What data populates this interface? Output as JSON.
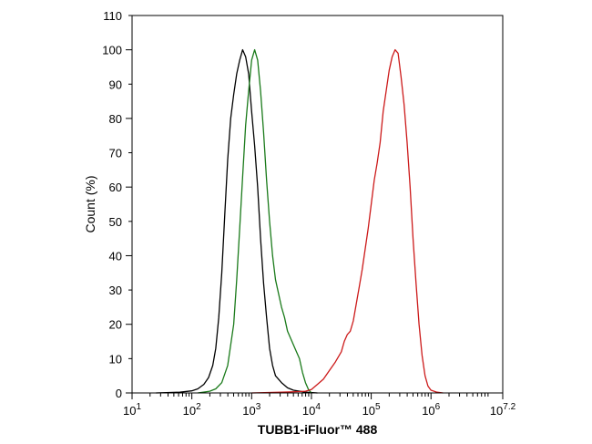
{
  "chart_data": {
    "type": "line",
    "xlabel": "TUBB1-iFluor™ 488",
    "ylabel": "Count  (%)",
    "x_scale": "log10",
    "xlim": [
      1,
      7.2
    ],
    "ylim": [
      0,
      110
    ],
    "x_ticks": [
      {
        "value": 1,
        "base": "10",
        "exp": "1"
      },
      {
        "value": 2,
        "base": "10",
        "exp": "2"
      },
      {
        "value": 3,
        "base": "10",
        "exp": "3"
      },
      {
        "value": 4,
        "base": "10",
        "exp": "4"
      },
      {
        "value": 5,
        "base": "10",
        "exp": "5"
      },
      {
        "value": 6,
        "base": "10",
        "exp": "6"
      },
      {
        "value": 7.2,
        "base": "10",
        "exp": "7.2"
      }
    ],
    "y_ticks_major": [
      0,
      20,
      40,
      60,
      80,
      100
    ],
    "y_ticks_minor": [
      10,
      30,
      50,
      70,
      90,
      110
    ],
    "y_tick_labels": [
      "0",
      "20",
      "40",
      "60",
      "80",
      "100"
    ],
    "grid": false,
    "legend": "none",
    "series": [
      {
        "color": "#000000",
        "points": [
          [
            1.4,
            0
          ],
          [
            1.8,
            0.2
          ],
          [
            2.0,
            0.6
          ],
          [
            2.1,
            1.2
          ],
          [
            2.2,
            2.5
          ],
          [
            2.28,
            4.5
          ],
          [
            2.35,
            8
          ],
          [
            2.4,
            13
          ],
          [
            2.45,
            22
          ],
          [
            2.5,
            35
          ],
          [
            2.55,
            52
          ],
          [
            2.6,
            68
          ],
          [
            2.65,
            80
          ],
          [
            2.7,
            87
          ],
          [
            2.75,
            93
          ],
          [
            2.8,
            97
          ],
          [
            2.85,
            100
          ],
          [
            2.9,
            98
          ],
          [
            2.95,
            93
          ],
          [
            3.0,
            82
          ],
          [
            3.05,
            72
          ],
          [
            3.1,
            60
          ],
          [
            3.15,
            45
          ],
          [
            3.2,
            32
          ],
          [
            3.25,
            22
          ],
          [
            3.3,
            13
          ],
          [
            3.35,
            8
          ],
          [
            3.4,
            5
          ],
          [
            3.5,
            3
          ],
          [
            3.6,
            1.5
          ],
          [
            3.7,
            0.8
          ],
          [
            3.9,
            0.2
          ],
          [
            4.1,
            0
          ]
        ]
      },
      {
        "color": "#1a7a1a",
        "points": [
          [
            2.1,
            0
          ],
          [
            2.3,
            0.5
          ],
          [
            2.4,
            1.2
          ],
          [
            2.5,
            3
          ],
          [
            2.6,
            8
          ],
          [
            2.7,
            20
          ],
          [
            2.75,
            33
          ],
          [
            2.8,
            48
          ],
          [
            2.85,
            63
          ],
          [
            2.9,
            78
          ],
          [
            2.95,
            88
          ],
          [
            3.0,
            97
          ],
          [
            3.05,
            100
          ],
          [
            3.1,
            97
          ],
          [
            3.15,
            88
          ],
          [
            3.2,
            76
          ],
          [
            3.25,
            62
          ],
          [
            3.3,
            50
          ],
          [
            3.35,
            40
          ],
          [
            3.4,
            33
          ],
          [
            3.45,
            29
          ],
          [
            3.5,
            25
          ],
          [
            3.55,
            22
          ],
          [
            3.6,
            18
          ],
          [
            3.7,
            14
          ],
          [
            3.8,
            10
          ],
          [
            3.85,
            6
          ],
          [
            3.9,
            3
          ],
          [
            3.95,
            1
          ],
          [
            4.0,
            0
          ]
        ]
      },
      {
        "color": "#cc1a1a",
        "points": [
          [
            3.0,
            0
          ],
          [
            3.5,
            0.2
          ],
          [
            3.8,
            0.4
          ],
          [
            3.9,
            0.5
          ],
          [
            4.0,
            1
          ],
          [
            4.1,
            2.5
          ],
          [
            4.2,
            4
          ],
          [
            4.3,
            6.5
          ],
          [
            4.4,
            9
          ],
          [
            4.5,
            12
          ],
          [
            4.55,
            15
          ],
          [
            4.6,
            17
          ],
          [
            4.65,
            18
          ],
          [
            4.7,
            21
          ],
          [
            4.75,
            26
          ],
          [
            4.8,
            31
          ],
          [
            4.85,
            36
          ],
          [
            4.9,
            42
          ],
          [
            4.95,
            48
          ],
          [
            5.0,
            55
          ],
          [
            5.05,
            62
          ],
          [
            5.1,
            67
          ],
          [
            5.15,
            73
          ],
          [
            5.2,
            82
          ],
          [
            5.25,
            88
          ],
          [
            5.3,
            94
          ],
          [
            5.35,
            98
          ],
          [
            5.4,
            100
          ],
          [
            5.45,
            99
          ],
          [
            5.5,
            92
          ],
          [
            5.55,
            84
          ],
          [
            5.6,
            73
          ],
          [
            5.65,
            60
          ],
          [
            5.7,
            45
          ],
          [
            5.75,
            32
          ],
          [
            5.8,
            20
          ],
          [
            5.85,
            11
          ],
          [
            5.9,
            5
          ],
          [
            5.95,
            2
          ],
          [
            6.0,
            0.8
          ],
          [
            6.1,
            0.2
          ],
          [
            6.2,
            0
          ]
        ]
      }
    ]
  }
}
